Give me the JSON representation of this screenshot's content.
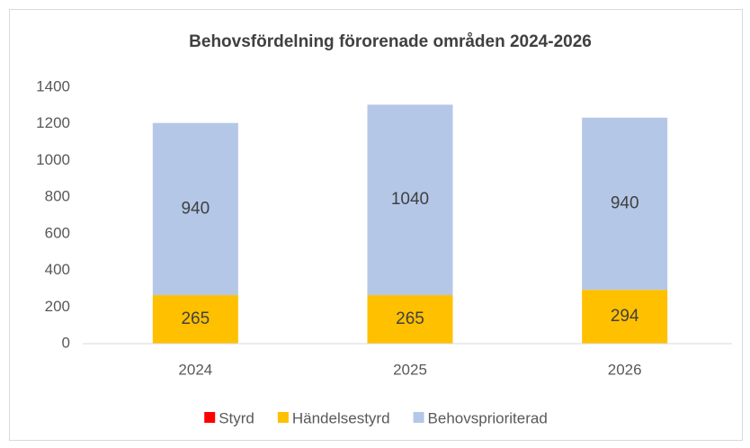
{
  "chart_data": {
    "type": "stacked_bar",
    "title": "Behovsfördelning förorenade områden 2024-2026",
    "categories": [
      "2024",
      "2025",
      "2026"
    ],
    "series": [
      {
        "name": "Styrd",
        "color": "#ff0000",
        "values": [
          null,
          null,
          null
        ]
      },
      {
        "name": "Händelsestyrd",
        "color": "#ffc000",
        "values": [
          265,
          265,
          294
        ]
      },
      {
        "name": "Behovsprioriterad",
        "color": "#b4c7e7",
        "values": [
          940,
          1040,
          940
        ]
      }
    ],
    "ylim": [
      0,
      1400
    ],
    "yticks": [
      0,
      200,
      400,
      600,
      800,
      1000,
      1200,
      1400
    ],
    "grid": false,
    "legend": "bottom"
  }
}
